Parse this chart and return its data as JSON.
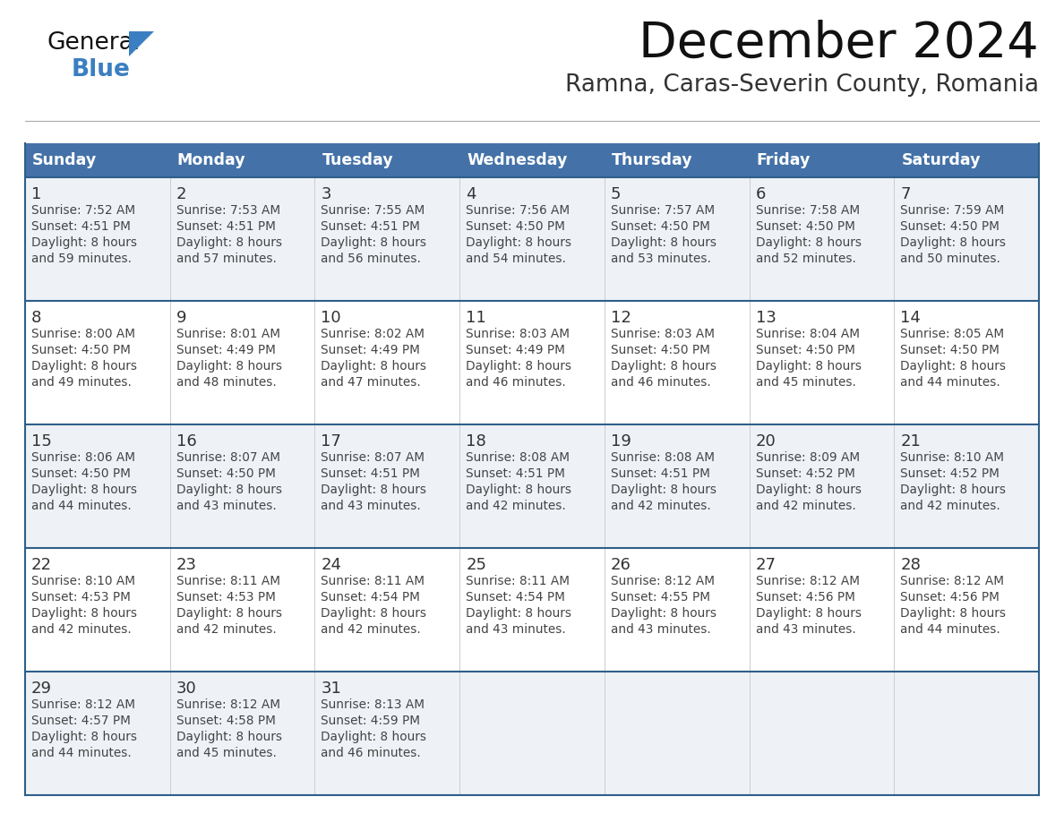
{
  "title": "December 2024",
  "subtitle": "Ramna, Caras-Severin County, Romania",
  "days_of_week": [
    "Sunday",
    "Monday",
    "Tuesday",
    "Wednesday",
    "Thursday",
    "Friday",
    "Saturday"
  ],
  "header_bg": "#4472a8",
  "header_text": "#FFFFFF",
  "day_num_color": "#333333",
  "cell_text_color": "#444444",
  "cell_bg_even": "#eef2f7",
  "cell_bg_odd": "#FFFFFF",
  "row_separator_color": "#2e5f8a",
  "col_separator_color": "#cccccc",
  "title_color": "#111111",
  "subtitle_color": "#333333",
  "logo_general_color": "#111111",
  "logo_blue_color": "#3a7fc1",
  "logo_triangle_color": "#3a7fc1",
  "calendar_data": [
    [
      {
        "day": 1,
        "sunrise": "7:52 AM",
        "sunset": "4:51 PM",
        "daylight": "8 hours",
        "daylight2": "and 59 minutes."
      },
      {
        "day": 2,
        "sunrise": "7:53 AM",
        "sunset": "4:51 PM",
        "daylight": "8 hours",
        "daylight2": "and 57 minutes."
      },
      {
        "day": 3,
        "sunrise": "7:55 AM",
        "sunset": "4:51 PM",
        "daylight": "8 hours",
        "daylight2": "and 56 minutes."
      },
      {
        "day": 4,
        "sunrise": "7:56 AM",
        "sunset": "4:50 PM",
        "daylight": "8 hours",
        "daylight2": "and 54 minutes."
      },
      {
        "day": 5,
        "sunrise": "7:57 AM",
        "sunset": "4:50 PM",
        "daylight": "8 hours",
        "daylight2": "and 53 minutes."
      },
      {
        "day": 6,
        "sunrise": "7:58 AM",
        "sunset": "4:50 PM",
        "daylight": "8 hours",
        "daylight2": "and 52 minutes."
      },
      {
        "day": 7,
        "sunrise": "7:59 AM",
        "sunset": "4:50 PM",
        "daylight": "8 hours",
        "daylight2": "and 50 minutes."
      }
    ],
    [
      {
        "day": 8,
        "sunrise": "8:00 AM",
        "sunset": "4:50 PM",
        "daylight": "8 hours",
        "daylight2": "and 49 minutes."
      },
      {
        "day": 9,
        "sunrise": "8:01 AM",
        "sunset": "4:49 PM",
        "daylight": "8 hours",
        "daylight2": "and 48 minutes."
      },
      {
        "day": 10,
        "sunrise": "8:02 AM",
        "sunset": "4:49 PM",
        "daylight": "8 hours",
        "daylight2": "and 47 minutes."
      },
      {
        "day": 11,
        "sunrise": "8:03 AM",
        "sunset": "4:49 PM",
        "daylight": "8 hours",
        "daylight2": "and 46 minutes."
      },
      {
        "day": 12,
        "sunrise": "8:03 AM",
        "sunset": "4:50 PM",
        "daylight": "8 hours",
        "daylight2": "and 46 minutes."
      },
      {
        "day": 13,
        "sunrise": "8:04 AM",
        "sunset": "4:50 PM",
        "daylight": "8 hours",
        "daylight2": "and 45 minutes."
      },
      {
        "day": 14,
        "sunrise": "8:05 AM",
        "sunset": "4:50 PM",
        "daylight": "8 hours",
        "daylight2": "and 44 minutes."
      }
    ],
    [
      {
        "day": 15,
        "sunrise": "8:06 AM",
        "sunset": "4:50 PM",
        "daylight": "8 hours",
        "daylight2": "and 44 minutes."
      },
      {
        "day": 16,
        "sunrise": "8:07 AM",
        "sunset": "4:50 PM",
        "daylight": "8 hours",
        "daylight2": "and 43 minutes."
      },
      {
        "day": 17,
        "sunrise": "8:07 AM",
        "sunset": "4:51 PM",
        "daylight": "8 hours",
        "daylight2": "and 43 minutes."
      },
      {
        "day": 18,
        "sunrise": "8:08 AM",
        "sunset": "4:51 PM",
        "daylight": "8 hours",
        "daylight2": "and 42 minutes."
      },
      {
        "day": 19,
        "sunrise": "8:08 AM",
        "sunset": "4:51 PM",
        "daylight": "8 hours",
        "daylight2": "and 42 minutes."
      },
      {
        "day": 20,
        "sunrise": "8:09 AM",
        "sunset": "4:52 PM",
        "daylight": "8 hours",
        "daylight2": "and 42 minutes."
      },
      {
        "day": 21,
        "sunrise": "8:10 AM",
        "sunset": "4:52 PM",
        "daylight": "8 hours",
        "daylight2": "and 42 minutes."
      }
    ],
    [
      {
        "day": 22,
        "sunrise": "8:10 AM",
        "sunset": "4:53 PM",
        "daylight": "8 hours",
        "daylight2": "and 42 minutes."
      },
      {
        "day": 23,
        "sunrise": "8:11 AM",
        "sunset": "4:53 PM",
        "daylight": "8 hours",
        "daylight2": "and 42 minutes."
      },
      {
        "day": 24,
        "sunrise": "8:11 AM",
        "sunset": "4:54 PM",
        "daylight": "8 hours",
        "daylight2": "and 42 minutes."
      },
      {
        "day": 25,
        "sunrise": "8:11 AM",
        "sunset": "4:54 PM",
        "daylight": "8 hours",
        "daylight2": "and 43 minutes."
      },
      {
        "day": 26,
        "sunrise": "8:12 AM",
        "sunset": "4:55 PM",
        "daylight": "8 hours",
        "daylight2": "and 43 minutes."
      },
      {
        "day": 27,
        "sunrise": "8:12 AM",
        "sunset": "4:56 PM",
        "daylight": "8 hours",
        "daylight2": "and 43 minutes."
      },
      {
        "day": 28,
        "sunrise": "8:12 AM",
        "sunset": "4:56 PM",
        "daylight": "8 hours",
        "daylight2": "and 44 minutes."
      }
    ],
    [
      {
        "day": 29,
        "sunrise": "8:12 AM",
        "sunset": "4:57 PM",
        "daylight": "8 hours",
        "daylight2": "and 44 minutes."
      },
      {
        "day": 30,
        "sunrise": "8:12 AM",
        "sunset": "4:58 PM",
        "daylight": "8 hours",
        "daylight2": "and 45 minutes."
      },
      {
        "day": 31,
        "sunrise": "8:13 AM",
        "sunset": "4:59 PM",
        "daylight": "8 hours",
        "daylight2": "and 46 minutes."
      },
      null,
      null,
      null,
      null
    ]
  ]
}
